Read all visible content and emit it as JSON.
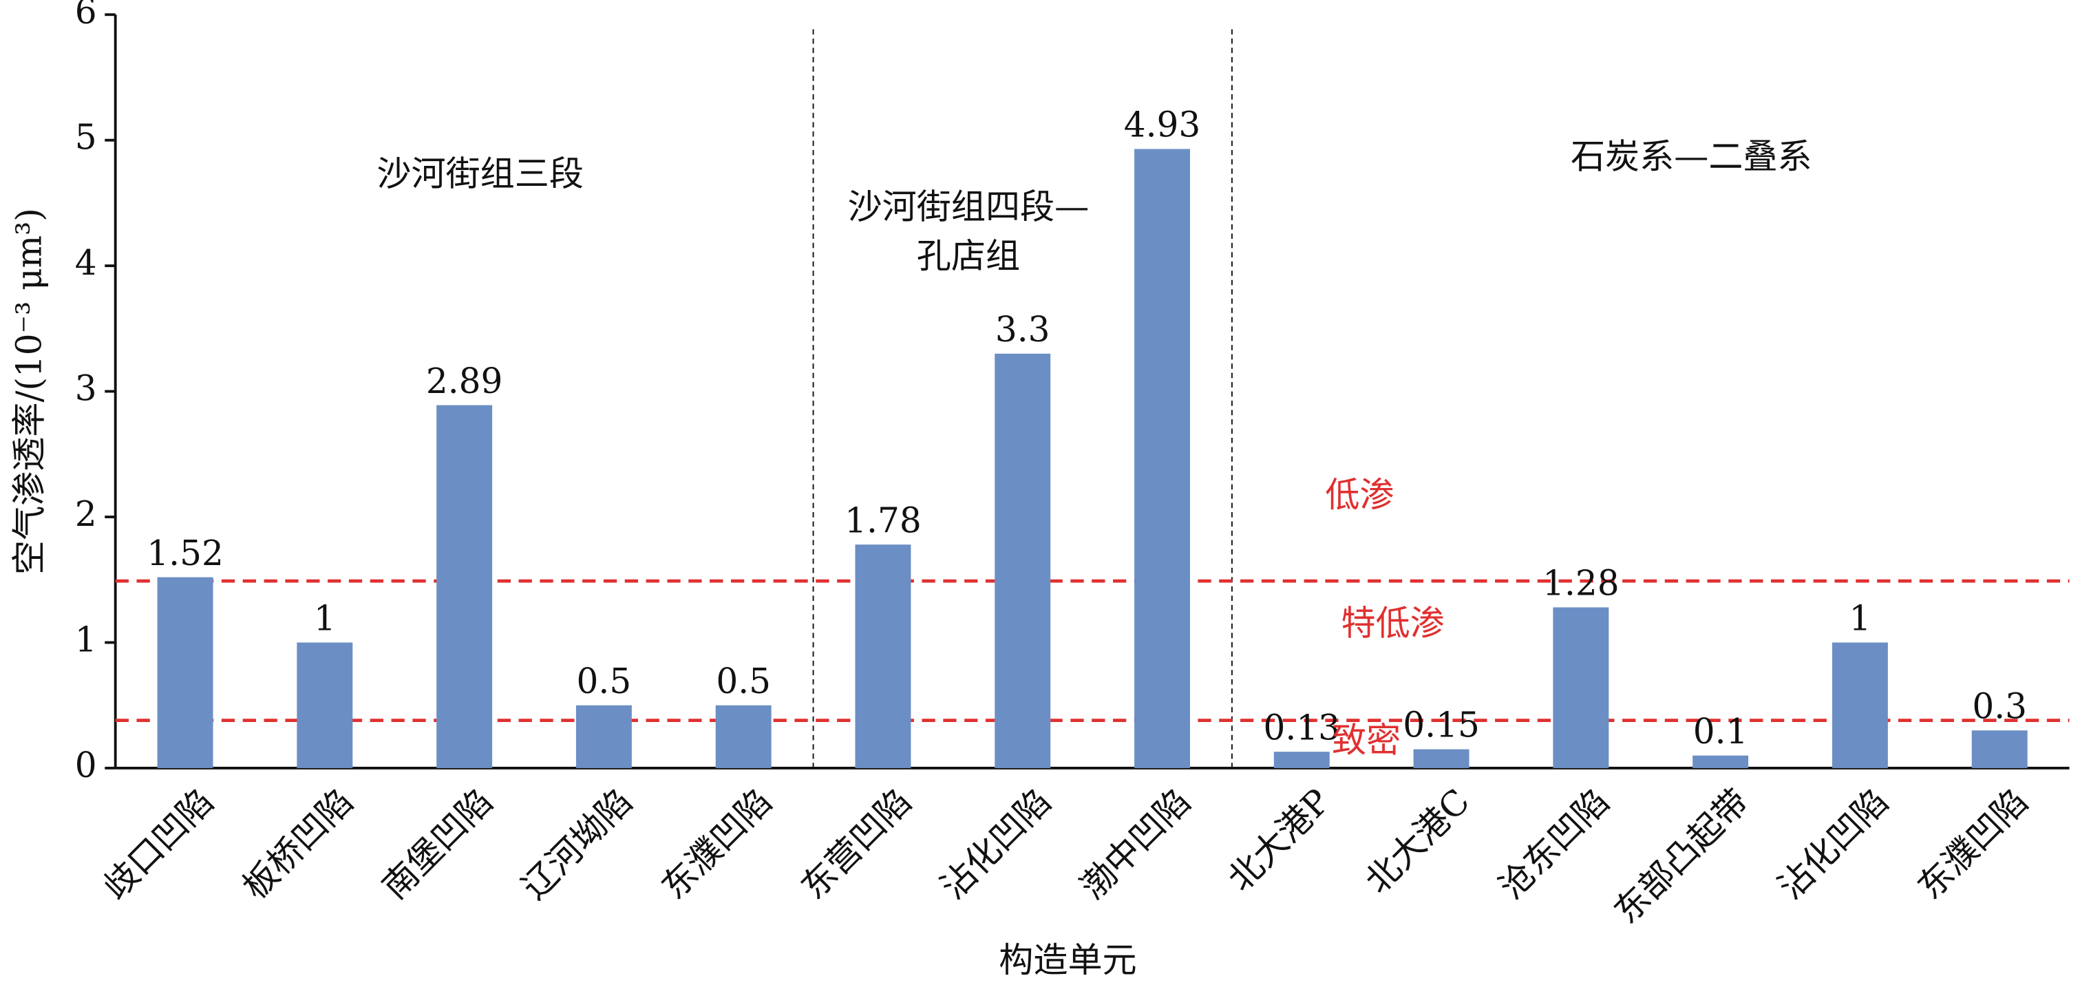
{
  "chart_data": {
    "type": "bar",
    "xlabel": "构造单元",
    "ylabel": "空气渗透率/(10⁻³ μm³)",
    "categories": [
      "歧口凹陷",
      "板桥凹陷",
      "南堡凹陷",
      "辽河坳陷",
      "东濮凹陷",
      "东营凹陷",
      "沾化凹陷",
      "渤中凹陷",
      "北大港P",
      "北大港C",
      "沧东凹陷",
      "东部凸起带",
      "沾化凹陷",
      "东濮凹陷"
    ],
    "values": [
      1.52,
      1,
      2.89,
      0.5,
      0.5,
      1.78,
      3.3,
      4.93,
      0.13,
      0.15,
      1.28,
      0.1,
      1,
      0.3
    ],
    "color": "#6b8fc4",
    "ylim": [
      0,
      6
    ],
    "yticks": [
      0,
      1,
      2,
      3,
      4,
      5,
      6
    ],
    "reference_lines": [
      {
        "value": 1.49,
        "color": "#e03030"
      },
      {
        "value": 0.38,
        "color": "#e03030"
      }
    ],
    "group_labels": [
      "沙河街组三段",
      "沙河街组四段—",
      "孔店组",
      "石炭系—二叠系"
    ],
    "zone_labels": [
      "低渗",
      "特低渗",
      "致密"
    ],
    "zone_color": "#e03030"
  }
}
